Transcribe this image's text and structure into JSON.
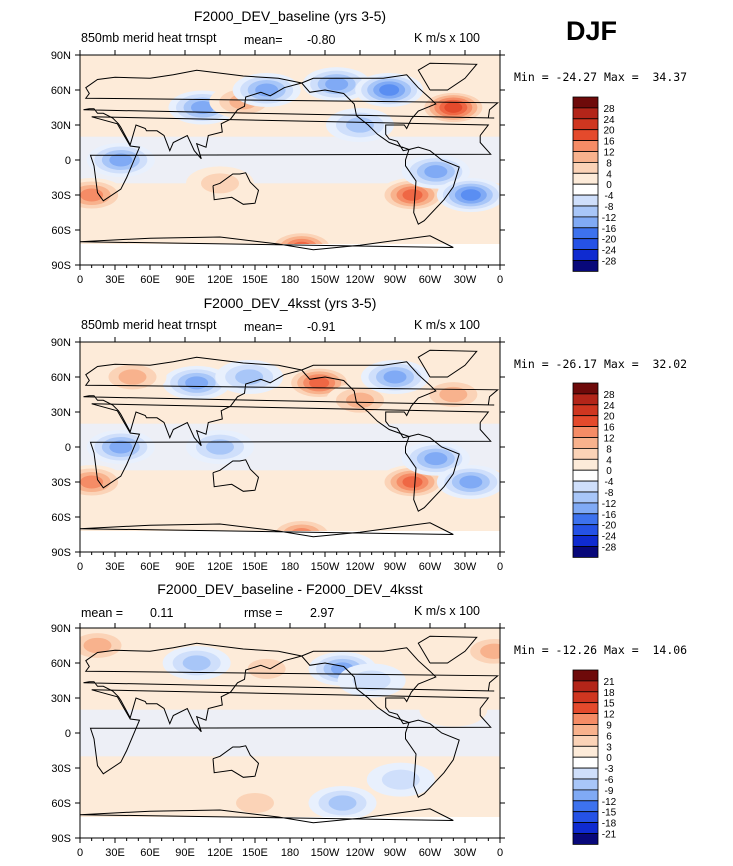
{
  "season": "DJF",
  "colors": {
    "levels21": [
      "#08087a",
      "#0f2bd0",
      "#2552e6",
      "#3d72ee",
      "#5a8ef2",
      "#80aaf5",
      "#a8c6f8",
      "#cfdffb",
      "#e8f0fd",
      "#ffffff",
      "#fdebd9",
      "#fbd3b7",
      "#f8b28d",
      "#f58c66",
      "#ef6744",
      "#e44a2c",
      "#cf3620",
      "#b32519",
      "#8c1010",
      "#6e0a0a"
    ],
    "grey": "#ffffff"
  },
  "panels": [
    {
      "title": "F2000_DEV_baseline (yrs 3-5)",
      "left_label": "850mb merid heat trnspt",
      "stat1": "mean=",
      "stat1_value": "-0.80",
      "stat2": "",
      "stat2_value": "",
      "units": "K m/s x 100",
      "minmax": "Min = -24.27 Max =  34.37",
      "colorbar_labels": [
        "28",
        "24",
        "20",
        "16",
        "12",
        "8",
        "4",
        "0",
        "-4",
        "-8",
        "-12",
        "-16",
        "-20",
        "-24",
        "-28"
      ]
    },
    {
      "title": "F2000_DEV_4ksst (yrs 3-5)",
      "left_label": "850mb merid heat trnspt",
      "stat1": "mean=",
      "stat1_value": "-0.91",
      "stat2": "",
      "stat2_value": "",
      "units": "K m/s x 100",
      "minmax": "Min = -26.17 Max =  32.02",
      "colorbar_labels": [
        "28",
        "24",
        "20",
        "16",
        "12",
        "8",
        "4",
        "0",
        "-4",
        "-8",
        "-12",
        "-16",
        "-20",
        "-24",
        "-28"
      ]
    },
    {
      "title": "F2000_DEV_baseline - F2000_DEV_4ksst",
      "left_label": "mean =",
      "stat1": "",
      "stat1_value": "0.11",
      "stat2": "rmse =",
      "stat2_value": "2.97",
      "units": "K m/s x 100",
      "minmax": "Min = -12.26 Max =  14.06",
      "colorbar_labels": [
        "21",
        "18",
        "15",
        "12",
        "9",
        "6",
        "3",
        "0",
        "-3",
        "-6",
        "-9",
        "-12",
        "-15",
        "-18",
        "-21"
      ]
    }
  ],
  "chart_data": [
    {
      "type": "heatmap",
      "title": "F2000_DEV_baseline (yrs 3-5)",
      "variable": "850mb merid heat trnspt",
      "units": "K m/s x 100",
      "mean": -0.8,
      "min": -24.27,
      "max": 34.37,
      "contour_levels": [
        -28,
        -24,
        -20,
        -16,
        -12,
        -8,
        -4,
        0,
        4,
        8,
        12,
        16,
        20,
        24,
        28
      ],
      "xlim": [
        0,
        360
      ],
      "ylim": [
        -90,
        90
      ],
      "x_ticks": [
        "0",
        "30E",
        "60E",
        "90E",
        "120E",
        "150E",
        "180",
        "150W",
        "120W",
        "90W",
        "60W",
        "30W",
        "0"
      ],
      "y_ticks": [
        "90N",
        "60N",
        "30N",
        "0",
        "30S",
        "60S",
        "90S"
      ],
      "features": [
        {
          "lon": 10,
          "lat": -30,
          "value": 16
        },
        {
          "lon": 105,
          "lat": 45,
          "value": -16
        },
        {
          "lon": 140,
          "lat": 50,
          "value": 12
        },
        {
          "lon": 160,
          "lat": 60,
          "value": -16
        },
        {
          "lon": 220,
          "lat": 65,
          "value": -16
        },
        {
          "lon": 265,
          "lat": 60,
          "value": -20
        },
        {
          "lon": 320,
          "lat": 45,
          "value": 24
        },
        {
          "lon": 285,
          "lat": -30,
          "value": 20
        },
        {
          "lon": 305,
          "lat": -10,
          "value": -16
        },
        {
          "lon": 335,
          "lat": -30,
          "value": -20
        },
        {
          "lon": 240,
          "lat": 30,
          "value": -12
        },
        {
          "lon": 190,
          "lat": -75,
          "value": 20
        },
        {
          "lon": 120,
          "lat": -20,
          "value": 8
        },
        {
          "lon": 35,
          "lat": 0,
          "value": -16
        }
      ]
    },
    {
      "type": "heatmap",
      "title": "F2000_DEV_4ksst (yrs 3-5)",
      "variable": "850mb merid heat trnspt",
      "units": "K m/s x 100",
      "mean": -0.91,
      "min": -26.17,
      "max": 32.02,
      "contour_levels": [
        -28,
        -24,
        -20,
        -16,
        -12,
        -8,
        -4,
        0,
        4,
        8,
        12,
        16,
        20,
        24,
        28
      ],
      "xlim": [
        0,
        360
      ],
      "ylim": [
        -90,
        90
      ],
      "x_ticks": [
        "0",
        "30E",
        "60E",
        "90E",
        "120E",
        "150E",
        "180",
        "150W",
        "120W",
        "90W",
        "60W",
        "30W",
        "0"
      ],
      "y_ticks": [
        "90N",
        "60N",
        "30N",
        "0",
        "30S",
        "60S",
        "90S"
      ],
      "features": [
        {
          "lon": 10,
          "lat": -30,
          "value": 16
        },
        {
          "lon": 100,
          "lat": 55,
          "value": -16
        },
        {
          "lon": 145,
          "lat": 60,
          "value": -12
        },
        {
          "lon": 205,
          "lat": 55,
          "value": 20
        },
        {
          "lon": 240,
          "lat": 40,
          "value": 12
        },
        {
          "lon": 270,
          "lat": 60,
          "value": -16
        },
        {
          "lon": 320,
          "lat": 45,
          "value": 12
        },
        {
          "lon": 285,
          "lat": -30,
          "value": 20
        },
        {
          "lon": 305,
          "lat": -10,
          "value": -16
        },
        {
          "lon": 335,
          "lat": -30,
          "value": -16
        },
        {
          "lon": 190,
          "lat": -75,
          "value": 16
        },
        {
          "lon": 120,
          "lat": 0,
          "value": -12
        },
        {
          "lon": 35,
          "lat": 0,
          "value": -16
        },
        {
          "lon": 45,
          "lat": 60,
          "value": 12
        }
      ]
    },
    {
      "type": "heatmap",
      "title": "F2000_DEV_baseline - F2000_DEV_4ksst",
      "units": "K m/s x 100",
      "mean": 0.11,
      "rmse": 2.97,
      "min": -12.26,
      "max": 14.06,
      "contour_levels": [
        -21,
        -18,
        -15,
        -12,
        -9,
        -6,
        -3,
        0,
        3,
        6,
        9,
        12,
        15,
        18,
        21
      ],
      "xlim": [
        0,
        360
      ],
      "ylim": [
        -90,
        90
      ],
      "x_ticks": [
        "0",
        "30E",
        "60E",
        "90E",
        "120E",
        "150E",
        "180",
        "150W",
        "120W",
        "90W",
        "60W",
        "30W",
        "0"
      ],
      "y_ticks": [
        "90N",
        "60N",
        "30N",
        "0",
        "30S",
        "60S",
        "90S"
      ],
      "features": [
        {
          "lon": 15,
          "lat": 75,
          "value": 9
        },
        {
          "lon": 355,
          "lat": 70,
          "value": 9
        },
        {
          "lon": 100,
          "lat": 60,
          "value": -9
        },
        {
          "lon": 160,
          "lat": 55,
          "value": 6
        },
        {
          "lon": 225,
          "lat": 55,
          "value": -12
        },
        {
          "lon": 250,
          "lat": 45,
          "value": -6
        },
        {
          "lon": 150,
          "lat": -60,
          "value": 6
        },
        {
          "lon": 225,
          "lat": -60,
          "value": -9
        },
        {
          "lon": 275,
          "lat": -40,
          "value": -6
        },
        {
          "lon": 70,
          "lat": -35,
          "value": 3
        },
        {
          "lon": 320,
          "lat": 20,
          "value": 3
        }
      ]
    }
  ]
}
